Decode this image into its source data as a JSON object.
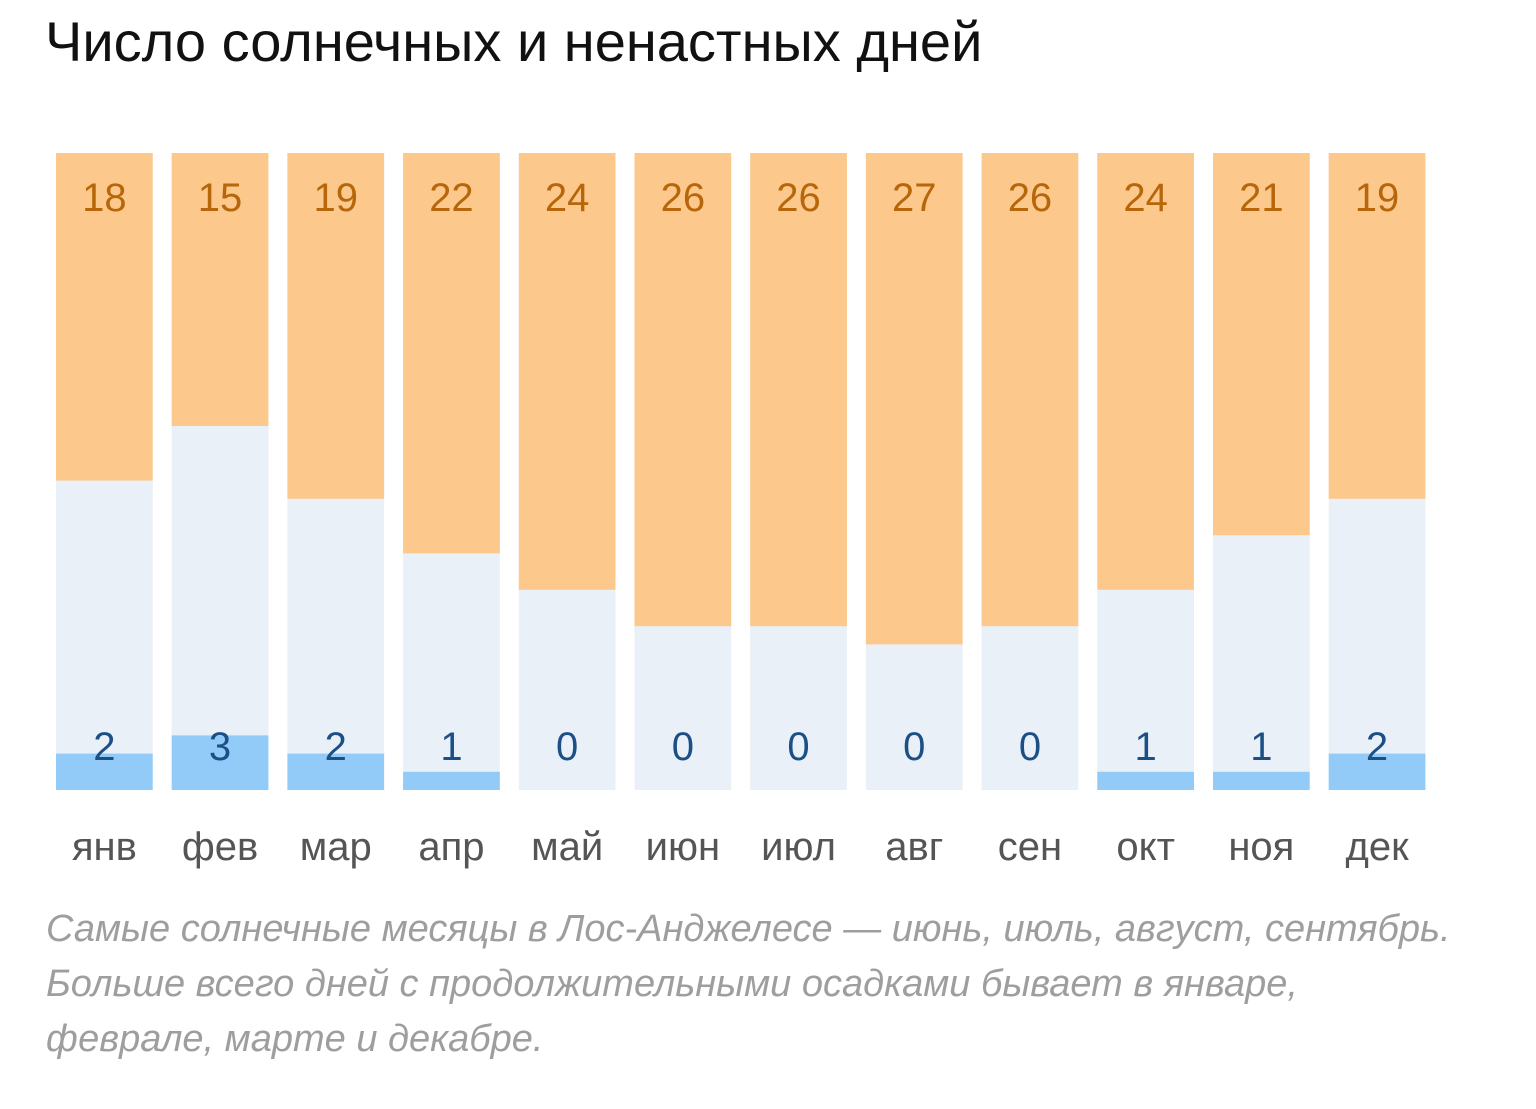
{
  "title": "Число солнечных и ненастных дней",
  "caption": "Самые солнечные месяцы в Лос-Анджелесе — июнь, июль, август, сентябрь. Больше всего дней с продолжительными осадками бывает в январе, феврале, марте и декабре.",
  "colors": {
    "sunny": "#fcc88c",
    "sunny_label": "#b8660a",
    "rainy": "#92caf8",
    "rainy_label": "#1c4f86",
    "other": "#e9f0f7",
    "month_label": "#555555"
  },
  "chart_data": {
    "type": "bar",
    "stacked": true,
    "categories": [
      "янв",
      "фев",
      "мар",
      "апр",
      "май",
      "июн",
      "июл",
      "авг",
      "сен",
      "окт",
      "ноя",
      "дек"
    ],
    "ylim": [
      0,
      35
    ],
    "series": [
      {
        "values": [
          18,
          15,
          19,
          22,
          24,
          26,
          26,
          27,
          26,
          24,
          21,
          19
        ]
      },
      {
        "values": [
          2,
          3,
          2,
          1,
          0,
          0,
          0,
          0,
          0,
          1,
          1,
          2
        ]
      }
    ]
  }
}
